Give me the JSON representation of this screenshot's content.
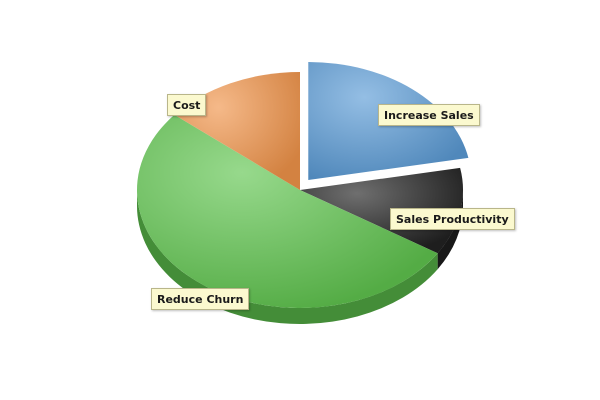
{
  "chart_data": {
    "type": "pie",
    "title": "",
    "legend": false,
    "slices": [
      {
        "label": "Increase Sales",
        "value": 22,
        "color": "#5b9bd5",
        "exploded": true
      },
      {
        "label": "Sales Productivity",
        "value": 12,
        "color": "#222222",
        "exploded": false
      },
      {
        "label": "Reduce Churn",
        "value": 52,
        "color": "#5fc44e",
        "exploded": false
      },
      {
        "label": "Cost",
        "value": 14,
        "color": "#f0944a",
        "exploded": false
      }
    ]
  }
}
